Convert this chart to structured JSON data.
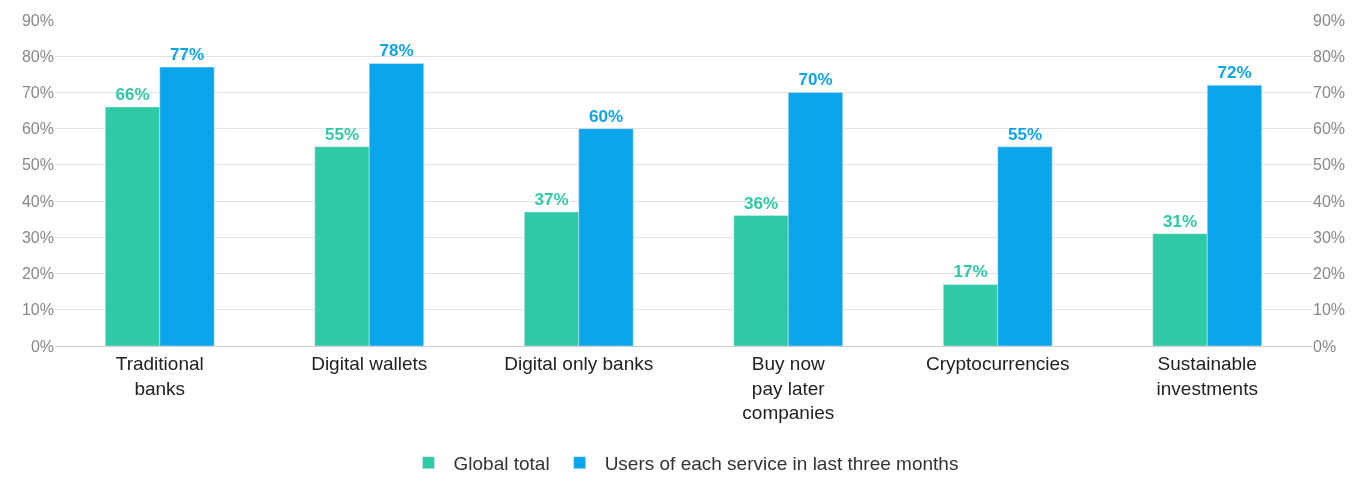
{
  "chart_data": {
    "type": "bar",
    "categories": [
      "Traditional\nbanks",
      "Digital wallets",
      "Digital only banks",
      "Buy now\npay later\ncompanies",
      "Cryptocurrencies",
      "Sustainable\ninvestments"
    ],
    "series": [
      {
        "name": "Global total",
        "color": "#2ec9a5",
        "values": [
          66,
          55,
          37,
          36,
          17,
          31
        ],
        "value_labels": [
          "66%",
          "55%",
          "37%",
          "36%",
          "17%",
          "31%"
        ]
      },
      {
        "name": "Users of each service in last three months",
        "color": "#0ba5ec",
        "values": [
          77,
          78,
          60,
          70,
          55,
          72
        ],
        "value_labels": [
          "77%",
          "78%",
          "60%",
          "70%",
          "55%",
          "72%"
        ]
      }
    ],
    "ylim": [
      0,
      90
    ],
    "yticks": [
      {
        "value": 0,
        "label": "0%"
      },
      {
        "value": 10,
        "label": "10%"
      },
      {
        "value": 20,
        "label": "20%"
      },
      {
        "value": 30,
        "label": "30%"
      },
      {
        "value": 40,
        "label": "40%"
      },
      {
        "value": 50,
        "label": "50%"
      },
      {
        "value": 60,
        "label": "60%"
      },
      {
        "value": 70,
        "label": "70%"
      },
      {
        "value": 80,
        "label": "80%"
      },
      {
        "value": 90,
        "label": "90%"
      }
    ],
    "y2lim": [
      0,
      90
    ],
    "y2ticks": [
      {
        "value": 0,
        "label": "0%"
      },
      {
        "value": 10,
        "label": "10%"
      },
      {
        "value": 20,
        "label": "20%"
      },
      {
        "value": 30,
        "label": "30%"
      },
      {
        "value": 40,
        "label": "40%"
      },
      {
        "value": 50,
        "label": "50%"
      },
      {
        "value": 60,
        "label": "60%"
      },
      {
        "value": 70,
        "label": "70%"
      },
      {
        "value": 80,
        "label": "80%"
      },
      {
        "value": 90,
        "label": "90%"
      }
    ],
    "grid": "y",
    "legend": "bottom"
  }
}
